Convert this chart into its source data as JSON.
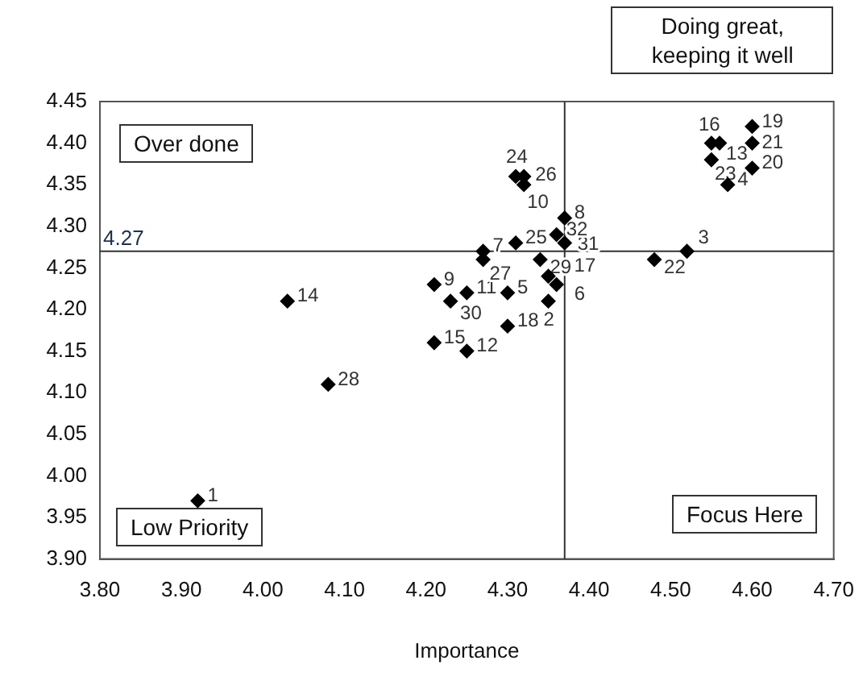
{
  "chart_data": {
    "type": "scatter",
    "xlabel": "Importance",
    "marker": "diamond",
    "grid": false,
    "legend": false,
    "xlim": [
      3.8,
      4.7
    ],
    "ylim": [
      3.9,
      4.45
    ],
    "xticks": [
      {
        "value": 3.8,
        "label": "3.80"
      },
      {
        "value": 3.9,
        "label": "3.90"
      },
      {
        "value": 4.0,
        "label": "4.00"
      },
      {
        "value": 4.1,
        "label": "4.10"
      },
      {
        "value": 4.2,
        "label": "4.20"
      },
      {
        "value": 4.3,
        "label": "4.30"
      },
      {
        "value": 4.4,
        "label": "4.40"
      },
      {
        "value": 4.5,
        "label": "4.50"
      },
      {
        "value": 4.6,
        "label": "4.60"
      },
      {
        "value": 4.7,
        "label": "4.70"
      }
    ],
    "yticks": [
      {
        "value": 3.9,
        "label": "3.90"
      },
      3.95,
      {
        "value": 4.0,
        "label": "4.00"
      },
      4.05,
      {
        "value": 4.1,
        "label": "4.10"
      },
      4.15,
      {
        "value": 4.2,
        "label": "4.20"
      },
      4.25,
      {
        "value": 4.3,
        "label": "4.30"
      },
      4.35,
      {
        "value": 4.4,
        "label": "4.40"
      },
      4.45
    ],
    "series": [
      {
        "color": "#000000",
        "x": [
          3.92,
          4.35,
          4.52,
          4.57,
          4.3,
          4.36,
          4.27,
          4.37,
          4.21,
          4.32,
          4.25,
          4.25,
          4.56,
          4.03,
          4.21,
          4.55,
          4.35,
          4.3,
          4.6,
          4.6,
          4.6,
          4.48,
          4.55,
          4.31,
          4.31,
          4.32,
          4.27,
          4.08,
          4.34,
          4.23,
          4.37,
          4.36
        ],
        "values": [
          3.97,
          4.21,
          4.27,
          4.35,
          4.22,
          4.23,
          4.27,
          4.31,
          4.23,
          4.35,
          4.22,
          4.15,
          4.4,
          4.21,
          4.16,
          4.4,
          4.24,
          4.18,
          4.42,
          4.37,
          4.4,
          4.26,
          4.38,
          4.36,
          4.28,
          4.36,
          4.26,
          4.11,
          4.26,
          4.21,
          4.28,
          4.29
        ]
      }
    ],
    "ref_lines": [
      {
        "axis": "y",
        "value": 4.27,
        "label": "4.27",
        "color": "#333333"
      },
      {
        "axis": "x",
        "value": 4.37,
        "label": null,
        "color": "#333333"
      }
    ],
    "annotations": [
      {
        "text": "1",
        "x": 3.92,
        "y": 3.97
      },
      {
        "text": "2",
        "x": 4.35,
        "y": 4.21
      },
      {
        "text": "3",
        "x": 4.52,
        "y": 4.27
      },
      {
        "text": "4",
        "x": 4.57,
        "y": 4.35
      },
      {
        "text": "5",
        "x": 4.3,
        "y": 4.22
      },
      {
        "text": "6",
        "x": 4.36,
        "y": 4.23
      },
      {
        "text": "7",
        "x": 4.27,
        "y": 4.27
      },
      {
        "text": "8",
        "x": 4.37,
        "y": 4.31
      },
      {
        "text": "9",
        "x": 4.21,
        "y": 4.23
      },
      {
        "text": "10",
        "x": 4.32,
        "y": 4.35
      },
      {
        "text": "11",
        "x": 4.25,
        "y": 4.22
      },
      {
        "text": "12",
        "x": 4.25,
        "y": 4.15
      },
      {
        "text": "13",
        "x": 4.56,
        "y": 4.4
      },
      {
        "text": "14",
        "x": 4.03,
        "y": 4.21
      },
      {
        "text": "15",
        "x": 4.21,
        "y": 4.16
      },
      {
        "text": "16",
        "x": 4.55,
        "y": 4.4
      },
      {
        "text": "17",
        "x": 4.35,
        "y": 4.24
      },
      {
        "text": "18",
        "x": 4.3,
        "y": 4.18
      },
      {
        "text": "19",
        "x": 4.6,
        "y": 4.42
      },
      {
        "text": "20",
        "x": 4.6,
        "y": 4.37
      },
      {
        "text": "21",
        "x": 4.6,
        "y": 4.4
      },
      {
        "text": "22",
        "x": 4.48,
        "y": 4.26
      },
      {
        "text": "23",
        "x": 4.55,
        "y": 4.38
      },
      {
        "text": "24",
        "x": 4.31,
        "y": 4.36
      },
      {
        "text": "25",
        "x": 4.31,
        "y": 4.28
      },
      {
        "text": "26",
        "x": 4.32,
        "y": 4.36
      },
      {
        "text": "27",
        "x": 4.27,
        "y": 4.26
      },
      {
        "text": "28",
        "x": 4.08,
        "y": 4.11
      },
      {
        "text": "29",
        "x": 4.34,
        "y": 4.26
      },
      {
        "text": "30",
        "x": 4.23,
        "y": 4.21
      },
      {
        "text": "31",
        "x": 4.37,
        "y": 4.28
      },
      {
        "text": "32",
        "x": 4.36,
        "y": 4.29
      },
      "Doing great, keeping it well",
      "Over done",
      "Low Priority",
      "Focus Here"
    ]
  }
}
